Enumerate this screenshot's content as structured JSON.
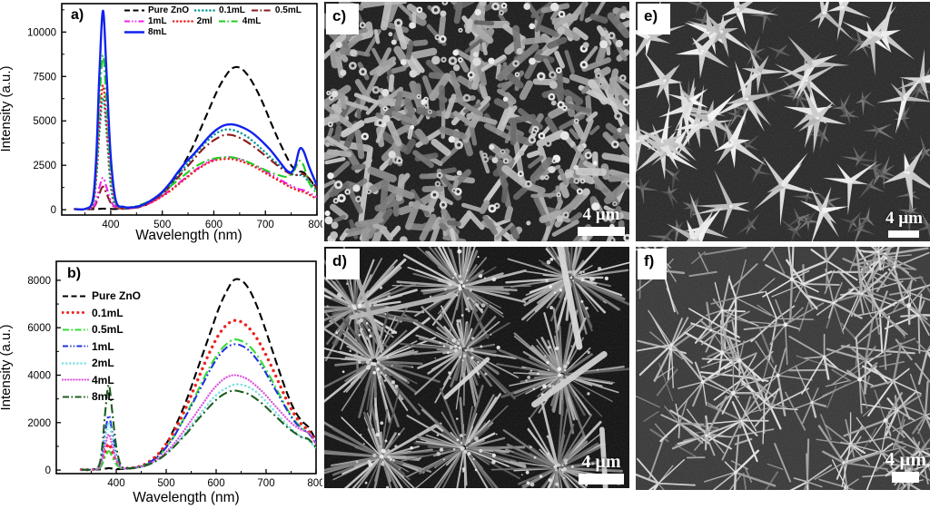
{
  "figure_description": "ZnO photoluminescence spectra and SEM micrographs",
  "chart_data": [
    {
      "id": "a",
      "type": "line",
      "panel_label": "a)",
      "xlabel": "Wavelength (nm)",
      "ylabel": "Intensity (a.u.)",
      "xlim": [
        305,
        800
      ],
      "ylim": [
        -300,
        11600
      ],
      "xticks": [
        400,
        500,
        600,
        700,
        800
      ],
      "xminor": [
        350,
        450,
        550,
        650,
        750
      ],
      "yticks": [
        0,
        2500,
        5000,
        7500,
        10000
      ],
      "yminor": [
        1250,
        3750,
        6250,
        8750,
        11250
      ],
      "legend_rows": [
        [
          0,
          1,
          2
        ],
        [
          3,
          4,
          5
        ],
        [
          6
        ]
      ],
      "x": [
        330,
        350,
        365,
        372,
        378,
        385,
        392,
        400,
        410,
        425,
        440,
        455,
        470,
        485,
        500,
        515,
        530,
        545,
        560,
        575,
        590,
        605,
        620,
        635,
        650,
        665,
        680,
        695,
        710,
        725,
        740,
        750,
        758,
        766,
        774,
        785,
        800
      ],
      "series": [
        {
          "name": "Pure ZnO",
          "color": "#000000",
          "dash": "dash",
          "y": [
            30,
            30,
            30,
            35,
            45,
            60,
            50,
            40,
            40,
            50,
            80,
            150,
            300,
            550,
            900,
            1400,
            2000,
            2750,
            3600,
            4600,
            5600,
            6600,
            7400,
            7950,
            8000,
            7600,
            6900,
            6000,
            4950,
            3950,
            3050,
            2500,
            2250,
            2150,
            2100,
            1750,
            1150
          ]
        },
        {
          "name": "0.1mL",
          "color": "#0b9a9a",
          "dash": "dot",
          "y": [
            30,
            30,
            250,
            1800,
            4300,
            6300,
            4300,
            1300,
            200,
            80,
            100,
            200,
            350,
            600,
            950,
            1400,
            1900,
            2450,
            3000,
            3500,
            3950,
            4300,
            4500,
            4500,
            4350,
            4100,
            3750,
            3350,
            2950,
            2550,
            2250,
            2050,
            1950,
            1950,
            1900,
            1550,
            1100
          ]
        },
        {
          "name": "0.5mL",
          "color": "#8b1a1a",
          "dash": "dashdot",
          "y": [
            30,
            30,
            90,
            380,
            900,
            1300,
            900,
            380,
            110,
            70,
            90,
            180,
            320,
            550,
            880,
            1300,
            1800,
            2300,
            2800,
            3300,
            3700,
            4000,
            4200,
            4200,
            4050,
            3800,
            3500,
            3150,
            2800,
            2450,
            2150,
            2000,
            1950,
            1980,
            2000,
            1750,
            1200
          ]
        },
        {
          "name": "1mL",
          "color": "#ee22ee",
          "dash": "dashdotdot",
          "y": [
            30,
            30,
            110,
            510,
            1250,
            1800,
            1250,
            510,
            130,
            70,
            90,
            170,
            300,
            500,
            780,
            1100,
            1450,
            1800,
            2150,
            2450,
            2700,
            2870,
            2950,
            2950,
            2850,
            2700,
            2500,
            2250,
            2000,
            1750,
            1500,
            1350,
            1250,
            1150,
            1100,
            950,
            700
          ]
        },
        {
          "name": "2ml",
          "color": "#ee2222",
          "dash": "dot",
          "y": [
            30,
            30,
            340,
            1900,
            4800,
            7000,
            4800,
            1900,
            300,
            90,
            90,
            170,
            300,
            500,
            760,
            1050,
            1400,
            1750,
            2100,
            2400,
            2650,
            2800,
            2850,
            2850,
            2750,
            2600,
            2400,
            2150,
            1900,
            1650,
            1400,
            1250,
            1150,
            1050,
            1000,
            850,
            600
          ]
        },
        {
          "name": "4mL",
          "color": "#22cc22",
          "dash": "dashdot",
          "y": [
            30,
            30,
            410,
            2350,
            5950,
            8700,
            5950,
            2350,
            380,
            120,
            150,
            250,
            420,
            650,
            950,
            1300,
            1650,
            2000,
            2350,
            2600,
            2800,
            2900,
            2950,
            2950,
            2850,
            2700,
            2500,
            2300,
            2100,
            1950,
            1850,
            2000,
            2350,
            2750,
            2500,
            1500,
            900
          ]
        },
        {
          "name": "8mL",
          "color": "#1122ee",
          "dash": "solid",
          "y": [
            40,
            40,
            520,
            3000,
            7600,
            11200,
            7600,
            3000,
            500,
            160,
            130,
            200,
            380,
            650,
            1000,
            1500,
            2100,
            2650,
            3100,
            3600,
            4100,
            4500,
            4750,
            4800,
            4700,
            4500,
            4200,
            3800,
            3350,
            2800,
            2250,
            2100,
            2500,
            3400,
            3300,
            2400,
            1350
          ]
        }
      ]
    },
    {
      "id": "b",
      "type": "line",
      "panel_label": "b)",
      "xlabel": "Wavelength (nm)",
      "ylabel": "Intensity (a.u.)",
      "xlim": [
        280,
        800
      ],
      "ylim": [
        -150,
        8800
      ],
      "xticks": [
        400,
        500,
        600,
        700,
        800
      ],
      "xminor": [
        350,
        450,
        550,
        650,
        750
      ],
      "yticks": [
        0,
        2000,
        4000,
        6000,
        8000
      ],
      "yminor": [
        1000,
        3000,
        5000,
        7000
      ],
      "legend_rows": [
        [
          0
        ],
        [
          1
        ],
        [
          2
        ],
        [
          3
        ],
        [
          4
        ],
        [
          5
        ],
        [
          6
        ]
      ],
      "x": [
        330,
        350,
        365,
        372,
        378,
        385,
        392,
        400,
        410,
        425,
        440,
        455,
        470,
        485,
        500,
        515,
        530,
        545,
        560,
        575,
        590,
        605,
        620,
        635,
        650,
        665,
        680,
        695,
        710,
        725,
        740,
        755,
        770,
        785,
        800
      ],
      "series": [
        {
          "name": "Pure ZnO",
          "color": "#000000",
          "dash": "dash",
          "y": [
            20,
            20,
            25,
            35,
            55,
            85,
            60,
            45,
            40,
            60,
            100,
            180,
            350,
            650,
            1100,
            1700,
            2400,
            3200,
            4100,
            5000,
            5900,
            6800,
            7500,
            8000,
            8000,
            7650,
            7000,
            6150,
            5200,
            4250,
            3350,
            2600,
            2100,
            1800,
            1250
          ]
        },
        {
          "name": "0.1mL",
          "color": "#ee2222",
          "dash": "bigdot",
          "y": [
            20,
            20,
            70,
            320,
            760,
            1100,
            760,
            320,
            90,
            80,
            120,
            220,
            420,
            700,
            1100,
            1600,
            2200,
            2900,
            3650,
            4400,
            5100,
            5700,
            6100,
            6300,
            6250,
            6000,
            5600,
            5050,
            4400,
            3700,
            3000,
            2400,
            1950,
            1650,
            1200
          ]
        },
        {
          "name": "0.5mL",
          "color": "#33dd33",
          "dash": "dashdot",
          "y": [
            20,
            20,
            55,
            240,
            560,
            800,
            560,
            240,
            80,
            70,
            100,
            190,
            360,
            600,
            950,
            1400,
            1950,
            2550,
            3200,
            3850,
            4450,
            4950,
            5300,
            5500,
            5450,
            5250,
            4900,
            4400,
            3850,
            3250,
            2650,
            2150,
            1800,
            1550,
            1100
          ]
        },
        {
          "name": "1mL",
          "color": "#2233dd",
          "dash": "dashdotdot",
          "y": [
            20,
            20,
            120,
            640,
            1580,
            2300,
            1580,
            640,
            120,
            80,
            110,
            200,
            370,
            620,
            960,
            1400,
            1950,
            2500,
            3100,
            3700,
            4300,
            4800,
            5150,
            5300,
            5250,
            5050,
            4700,
            4250,
            3700,
            3150,
            2600,
            2100,
            1750,
            1550,
            1150
          ]
        },
        {
          "name": "2mL",
          "color": "#7ae0e0",
          "dash": "dot",
          "y": [
            20,
            20,
            110,
            560,
            1370,
            2000,
            1370,
            560,
            110,
            70,
            90,
            160,
            280,
            460,
            700,
            1000,
            1350,
            1750,
            2150,
            2550,
            2950,
            3250,
            3450,
            3600,
            3600,
            3500,
            3300,
            3000,
            2650,
            2300,
            1950,
            1650,
            1400,
            1250,
            900
          ]
        },
        {
          "name": "4mL",
          "color": "#dd55dd",
          "dash": "densedot",
          "y": [
            20,
            20,
            85,
            430,
            1030,
            1500,
            1030,
            430,
            100,
            70,
            100,
            170,
            300,
            500,
            770,
            1100,
            1500,
            1950,
            2400,
            2850,
            3300,
            3650,
            3900,
            4000,
            3950,
            3800,
            3550,
            3250,
            2900,
            2550,
            2200,
            1900,
            1700,
            1550,
            1100
          ]
        },
        {
          "name": "8mL",
          "color": "#1d5c1d",
          "dash": "dashdot",
          "y": [
            20,
            20,
            180,
            1000,
            2460,
            3600,
            2460,
            1000,
            170,
            80,
            100,
            160,
            280,
            450,
            680,
            970,
            1300,
            1650,
            2050,
            2400,
            2750,
            3050,
            3250,
            3350,
            3300,
            3200,
            3000,
            2750,
            2450,
            2150,
            1850,
            1600,
            1400,
            1300,
            950
          ]
        }
      ]
    }
  ],
  "sem_panels": [
    {
      "id": "c",
      "label": "c)",
      "scale_bar": "4 µm",
      "texture": "dense hexagonal nanorods, top view"
    },
    {
      "id": "d",
      "label": "d)",
      "scale_bar": "4 µm",
      "texture": "urchin-like needle clusters"
    },
    {
      "id": "e",
      "label": "e)",
      "scale_bar": "4 µm",
      "texture": "bright star-shaped blade bundles"
    },
    {
      "id": "f",
      "label": "f)",
      "scale_bar": "4 µm",
      "texture": "thin spiky star networks"
    }
  ]
}
